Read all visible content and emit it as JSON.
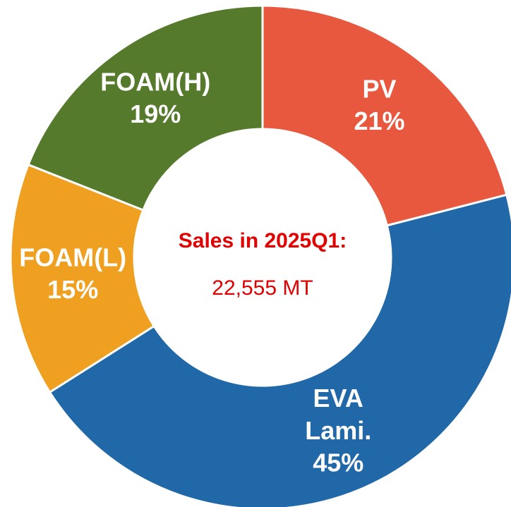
{
  "chart_data": {
    "type": "donut",
    "categories": [
      "PV",
      "EVA Lami.",
      "FOAM(L)",
      "FOAM(H)"
    ],
    "values": [
      21,
      45,
      15,
      19
    ],
    "value_labels": [
      "21%",
      "45%",
      "15%",
      "19%"
    ],
    "colors": [
      "#e8583f",
      "#2068a7",
      "#f0a020",
      "#557a2b"
    ],
    "annotations": [
      "Sales in 2025Q1:",
      "22,555 MT"
    ]
  }
}
